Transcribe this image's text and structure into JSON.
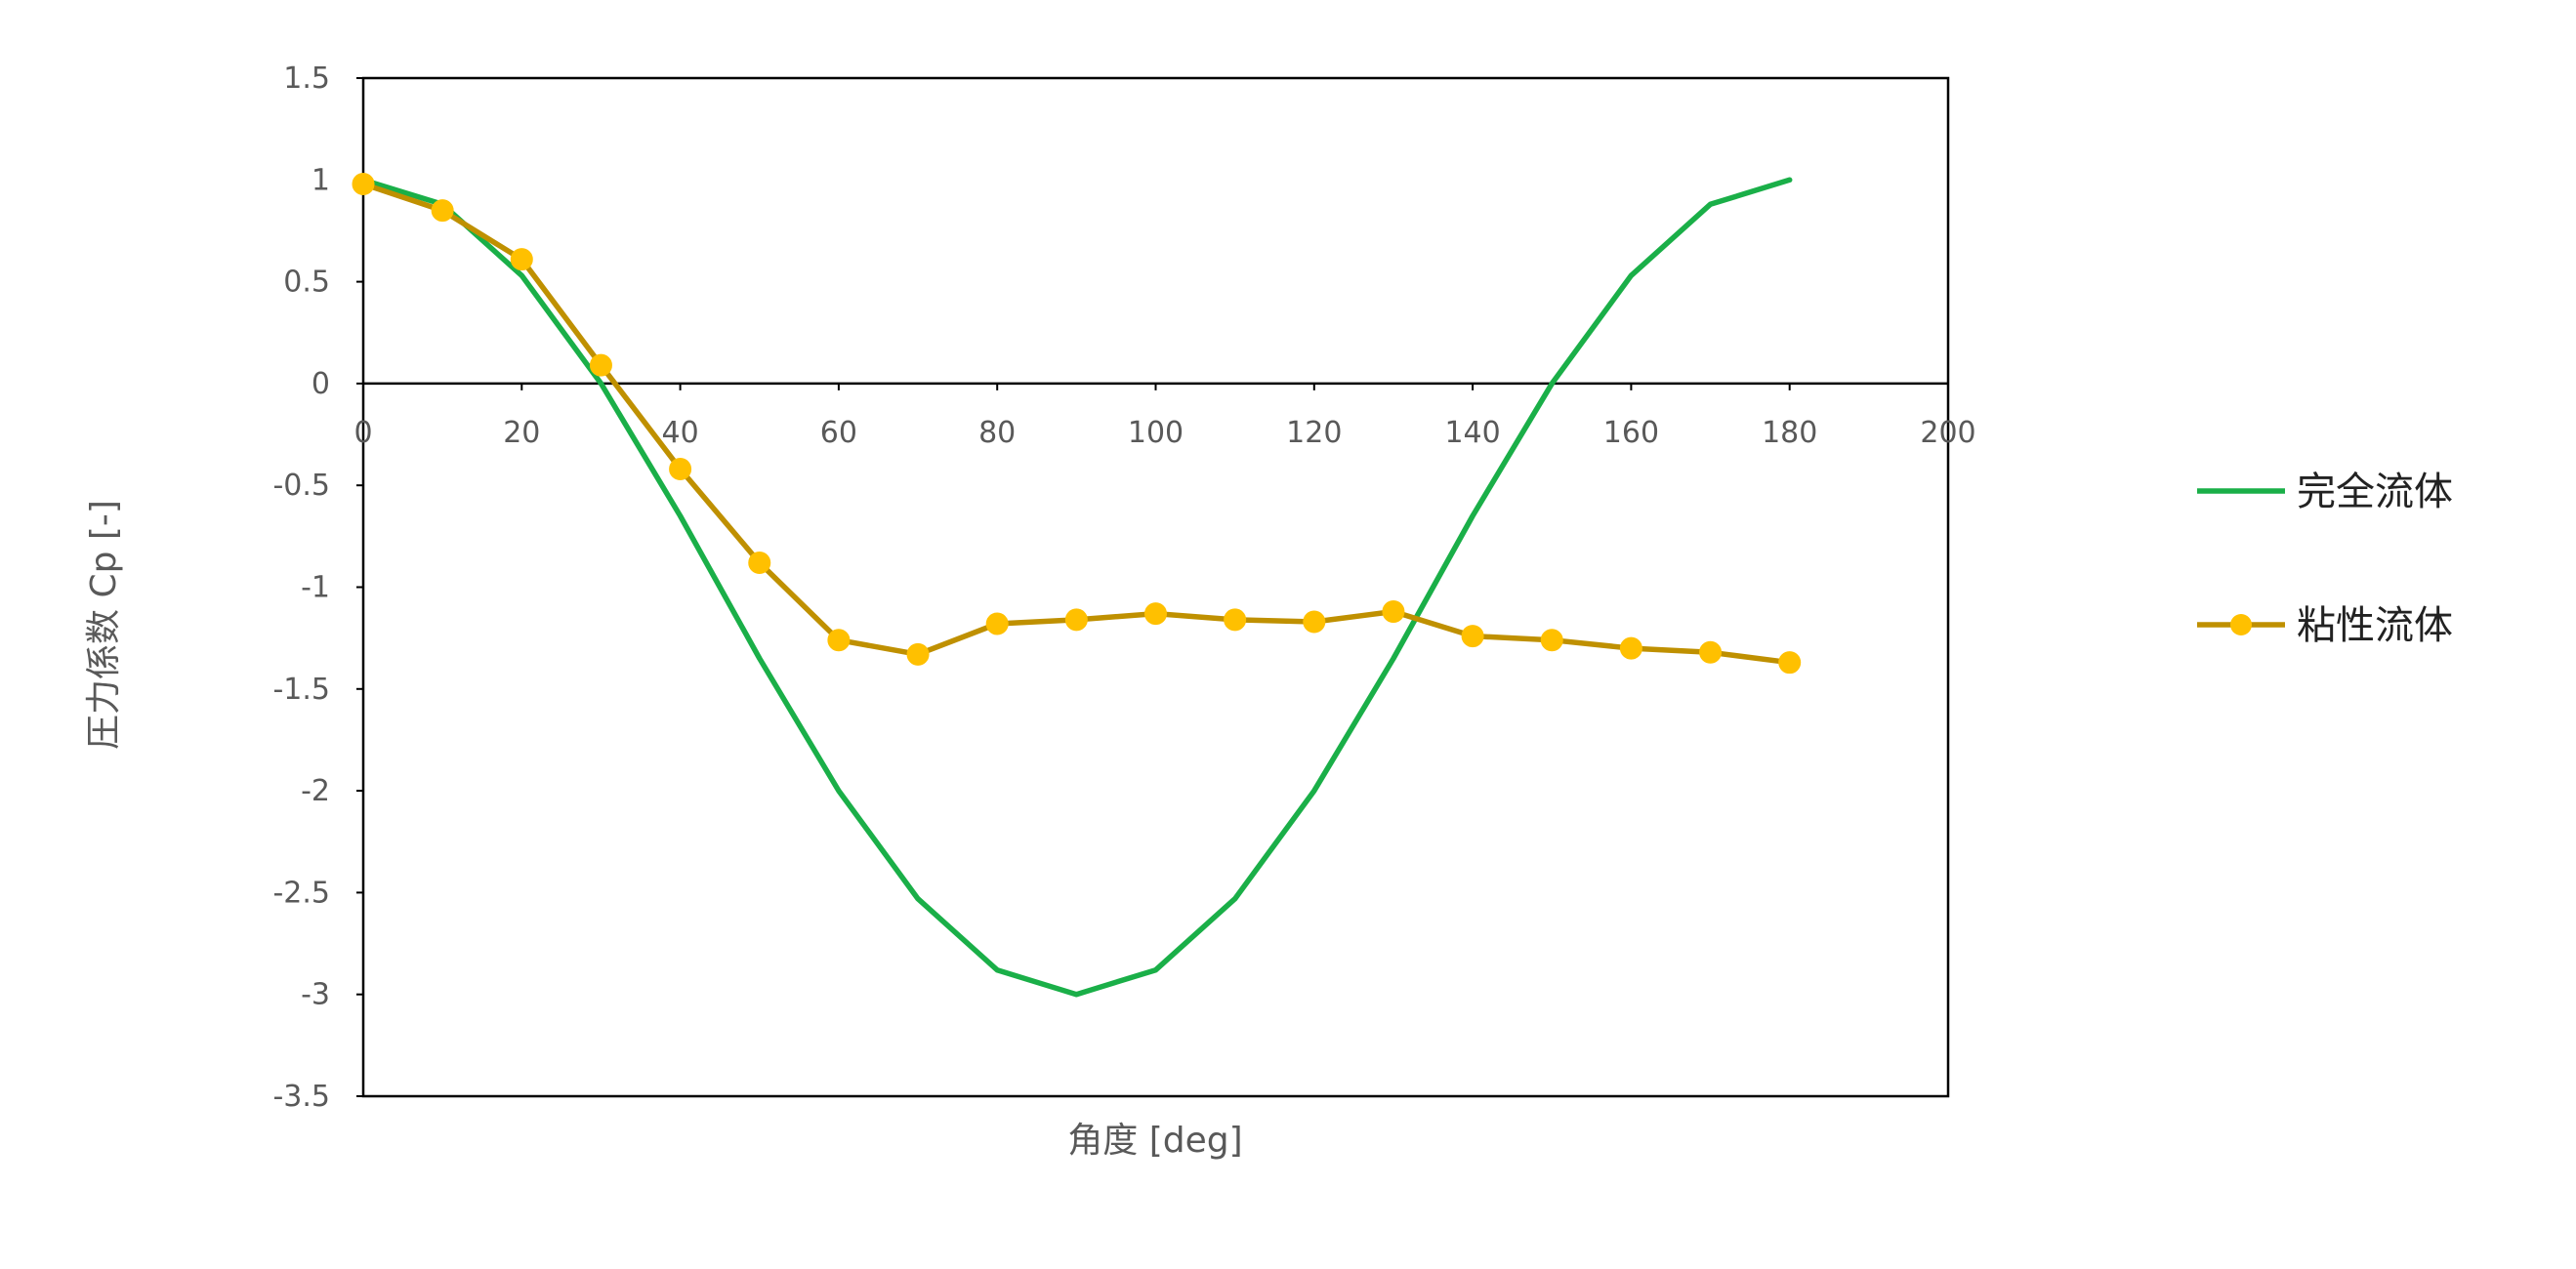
{
  "chart_data": {
    "type": "line",
    "title": "",
    "xlabel": "角度 [deg]",
    "ylabel": "圧力係数 Cp [-]",
    "xlim": [
      0,
      200
    ],
    "ylim": [
      -3.5,
      1.5
    ],
    "xticks": [
      0,
      20,
      40,
      60,
      80,
      100,
      120,
      140,
      160,
      180,
      200
    ],
    "yticks": [
      1.5,
      1,
      0.5,
      0,
      -0.5,
      -1,
      -1.5,
      -2,
      -2.5,
      -3,
      -3.5
    ],
    "grid": false,
    "legend_position": "right",
    "series": [
      {
        "name": "完全流体",
        "color": "#1AAF48",
        "marker": "none",
        "x": [
          0,
          10,
          20,
          30,
          40,
          50,
          60,
          70,
          80,
          90,
          100,
          110,
          120,
          130,
          140,
          150,
          160,
          170,
          180
        ],
        "y": [
          1,
          0.88,
          0.53,
          0,
          -0.65,
          -1.35,
          -2,
          -2.53,
          -2.88,
          -3,
          -2.88,
          -2.53,
          -2,
          -1.35,
          -0.65,
          0,
          0.53,
          0.88,
          1
        ]
      },
      {
        "name": "粘性流体",
        "color": "#BF9000",
        "marker_color": "#FFC000",
        "marker": "circle",
        "x": [
          0,
          10,
          20,
          30,
          40,
          50,
          60,
          70,
          80,
          90,
          100,
          110,
          120,
          130,
          140,
          150,
          160,
          170,
          180
        ],
        "y": [
          0.98,
          0.85,
          0.61,
          0.09,
          -0.42,
          -0.88,
          -1.26,
          -1.33,
          -1.18,
          -1.16,
          -1.13,
          -1.16,
          -1.17,
          -1.12,
          -1.24,
          -1.26,
          -1.3,
          -1.32,
          -1.37
        ]
      }
    ]
  }
}
